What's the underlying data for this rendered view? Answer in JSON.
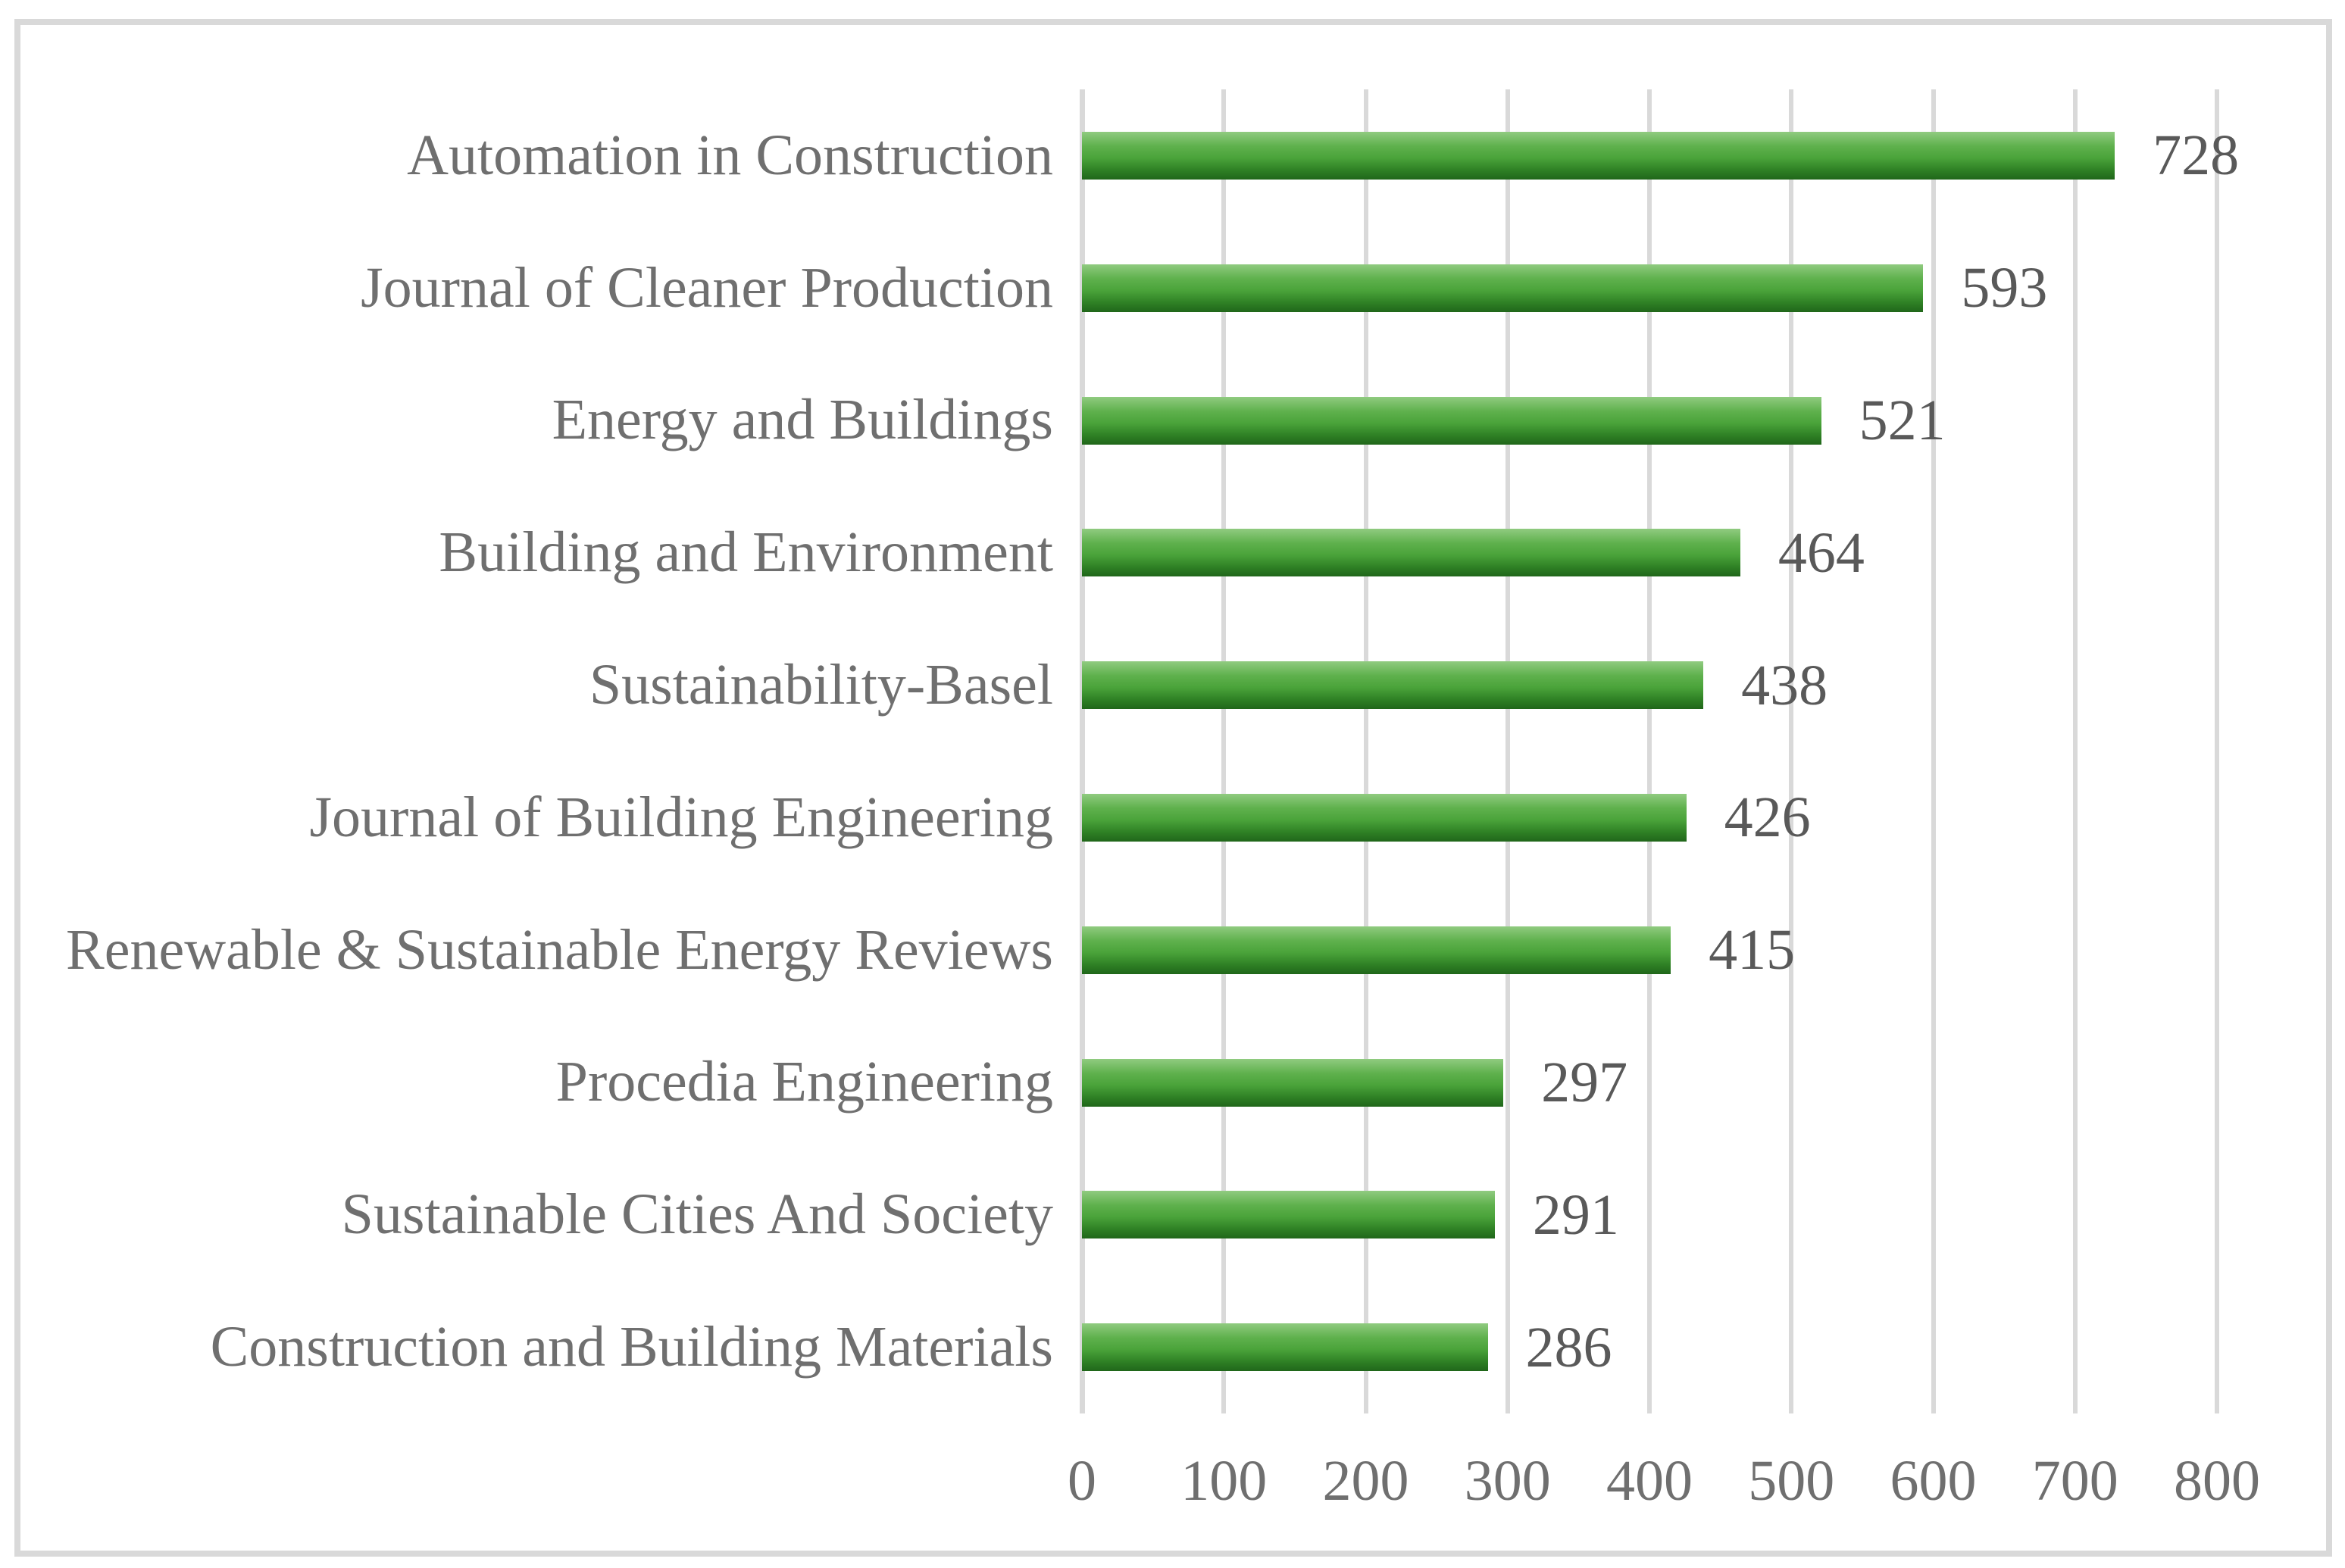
{
  "chart_data": {
    "type": "bar",
    "orientation": "horizontal",
    "title": "",
    "xlabel": "",
    "ylabel": "",
    "categories": [
      "Automation in Construction",
      "Journal of Cleaner Production",
      "Energy and Buildings",
      "Building and Environment",
      "Sustainability-Basel",
      "Journal of Building Engineering",
      "Renewable & Sustainable Energy Reviews",
      "Procedia Engineering",
      "Sustainable Cities And Society",
      "Construction and Building Materials"
    ],
    "values": [
      728,
      593,
      521,
      464,
      438,
      426,
      415,
      297,
      291,
      286
    ],
    "data_labels": [
      "728",
      "593",
      "521",
      "464",
      "438",
      "426",
      "415",
      "297",
      "291",
      "286"
    ],
    "xlim": [
      0,
      800
    ],
    "x_ticks": [
      0,
      100,
      200,
      300,
      400,
      500,
      600,
      700,
      800
    ],
    "x_tick_labels": [
      "0",
      "100",
      "200",
      "300",
      "400",
      "500",
      "600",
      "700",
      "800"
    ],
    "grid": true,
    "legend": false,
    "colors": {
      "bar_gradient_top": "#90cb80",
      "bar_gradient_mid": "#4aa33a",
      "bar_gradient_bottom": "#20661a",
      "gridline": "#d9d9d9",
      "frame_border": "#d9d9d9",
      "category_text": "#6f6f6f",
      "axis_text": "#6f6f6f",
      "value_text": "#595959",
      "background": "#ffffff"
    }
  }
}
